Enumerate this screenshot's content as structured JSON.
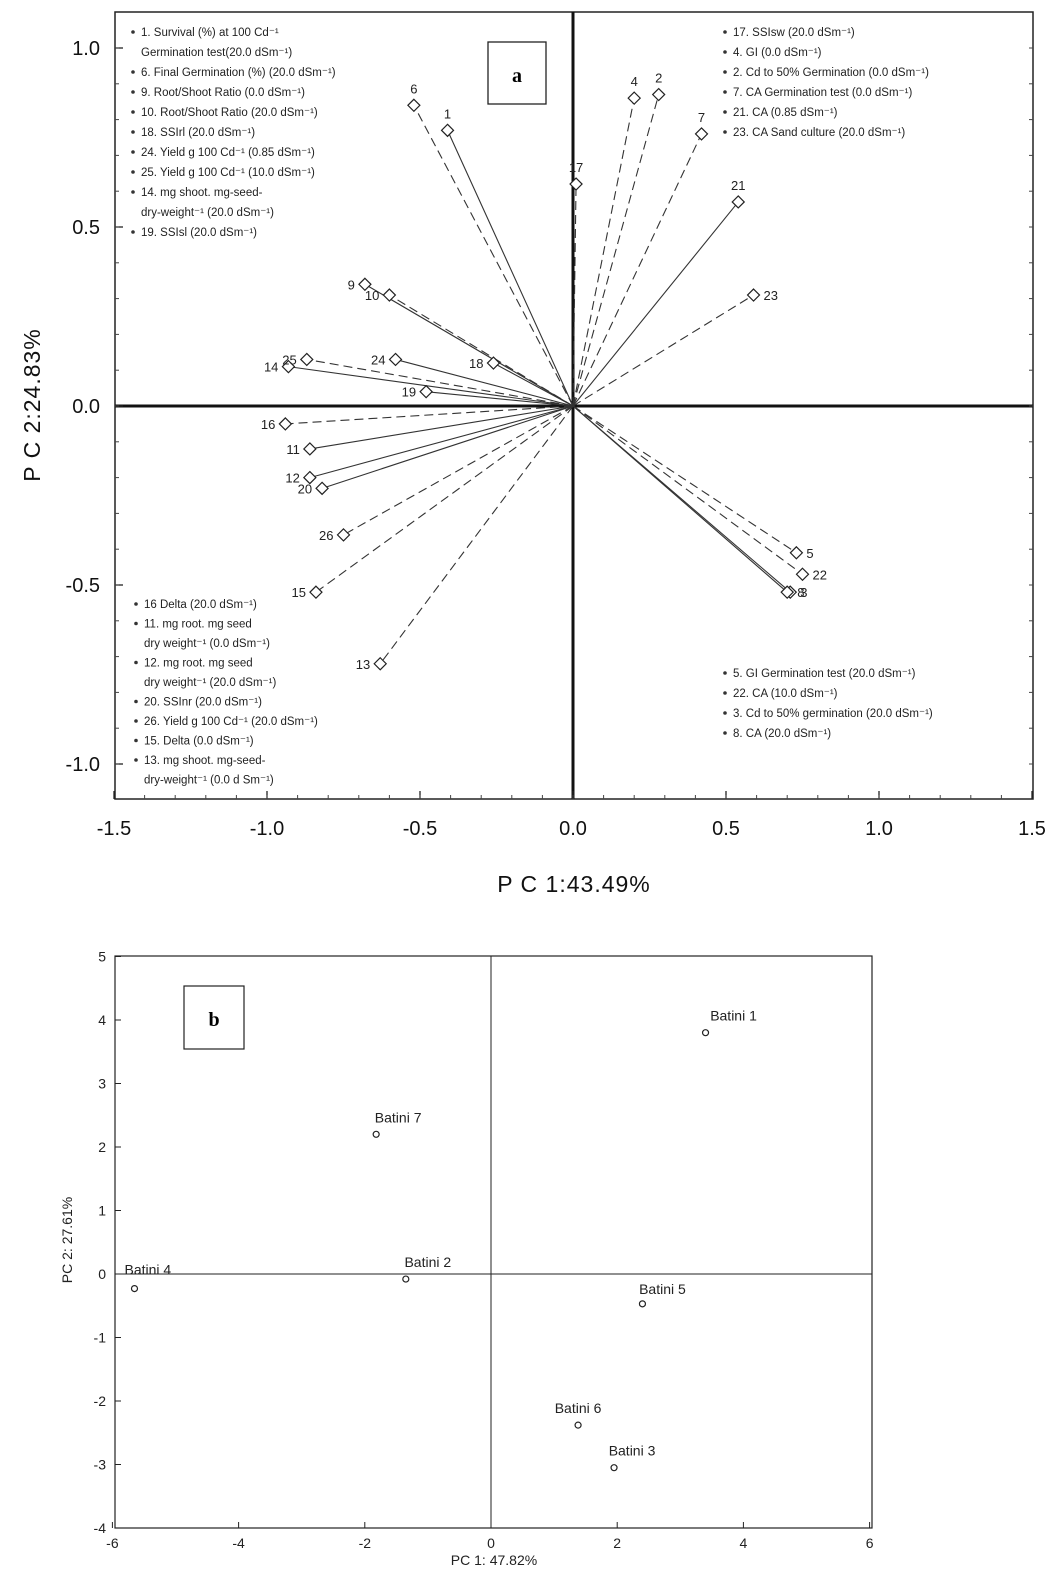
{
  "chart_data": [
    {
      "type": "scatter",
      "panel_label": "a",
      "xlabel": "P C 1:43.49%",
      "ylabel": "P C 2:24.83%",
      "xlim": [
        -1.5,
        1.5
      ],
      "ylim": [
        -1.1,
        1.1
      ],
      "xticks": [
        "-1.5",
        "-1.0",
        "-0.5",
        "0.0",
        "0.5",
        "1.0",
        "1.5"
      ],
      "xtick_values": [
        -1.5,
        -1.0,
        -0.5,
        0.0,
        0.5,
        1.0,
        1.5
      ],
      "yticks": [
        "1.0",
        "0.5",
        "0.0",
        "-0.5",
        "-1.0"
      ],
      "ytick_values": [
        1.0,
        0.5,
        0.0,
        -0.5,
        -1.0
      ],
      "vectors": [
        {
          "label": "1",
          "x": -0.41,
          "y": 0.77,
          "style": "solid"
        },
        {
          "label": "2",
          "x": 0.28,
          "y": 0.87,
          "style": "dashed"
        },
        {
          "label": "3",
          "x": 0.71,
          "y": -0.52,
          "style": "solid"
        },
        {
          "label": "4",
          "x": 0.2,
          "y": 0.86,
          "style": "dashed"
        },
        {
          "label": "5",
          "x": 0.73,
          "y": -0.41,
          "style": "dashed"
        },
        {
          "label": "6",
          "x": -0.52,
          "y": 0.84,
          "style": "dashed"
        },
        {
          "label": "7",
          "x": 0.42,
          "y": 0.76,
          "style": "dashed"
        },
        {
          "label": "8",
          "x": 0.7,
          "y": -0.52,
          "style": "solid"
        },
        {
          "label": "9",
          "x": -0.68,
          "y": 0.34,
          "style": "solid"
        },
        {
          "label": "10",
          "x": -0.6,
          "y": 0.31,
          "style": "dashed"
        },
        {
          "label": "11",
          "x": -0.86,
          "y": -0.12,
          "style": "solid"
        },
        {
          "label": "12",
          "x": -0.86,
          "y": -0.2,
          "style": "solid"
        },
        {
          "label": "13",
          "x": -0.63,
          "y": -0.72,
          "style": "dashed"
        },
        {
          "label": "14",
          "x": -0.93,
          "y": 0.11,
          "style": "solid"
        },
        {
          "label": "15",
          "x": -0.84,
          "y": -0.52,
          "style": "dashed"
        },
        {
          "label": "16",
          "x": -0.94,
          "y": -0.05,
          "style": "dashed"
        },
        {
          "label": "17",
          "x": 0.01,
          "y": 0.62,
          "style": "dashed"
        },
        {
          "label": "18",
          "x": -0.26,
          "y": 0.12,
          "style": "solid"
        },
        {
          "label": "19",
          "x": -0.48,
          "y": 0.04,
          "style": "solid"
        },
        {
          "label": "20",
          "x": -0.82,
          "y": -0.23,
          "style": "solid"
        },
        {
          "label": "21",
          "x": 0.54,
          "y": 0.57,
          "style": "solid"
        },
        {
          "label": "22",
          "x": 0.75,
          "y": -0.47,
          "style": "dashed"
        },
        {
          "label": "23",
          "x": 0.59,
          "y": 0.31,
          "style": "dashed"
        },
        {
          "label": "24",
          "x": -0.58,
          "y": 0.13,
          "style": "solid"
        },
        {
          "label": "25",
          "x": -0.87,
          "y": 0.13,
          "style": "dashed"
        },
        {
          "label": "26",
          "x": -0.75,
          "y": -0.36,
          "style": "dashed"
        }
      ],
      "legend_top_left": [
        "1. Survival (%) at 100 Cd⁻¹",
        "Germination test(20.0 dSm⁻¹)",
        "6. Final Germination (%) (20.0 dSm⁻¹)",
        "9. Root/Shoot Ratio (0.0 dSm⁻¹)",
        "10. Root/Shoot Ratio (20.0 dSm⁻¹)",
        "18. SSIrl (20.0 dSm⁻¹)",
        "24. Yield g 100 Cd⁻¹ (0.85 dSm⁻¹)",
        "25. Yield g 100 Cd⁻¹ (10.0 dSm⁻¹)",
        "14. mg shoot. mg-seed-",
        "dry-weight⁻¹ (20.0 dSm⁻¹)",
        "19. SSIsl (20.0 dSm⁻¹)"
      ],
      "legend_top_right": [
        "17. SSIsw (20.0 dSm⁻¹)",
        "4. GI (0.0 dSm⁻¹)",
        "2. Cd to 50% Germination (0.0 dSm⁻¹)",
        "7. CA Germination test (0.0 dSm⁻¹)",
        "21. CA (0.85 dSm⁻¹)",
        "23. CA Sand culture (20.0 dSm⁻¹)"
      ],
      "legend_bottom_left": [
        "16 Delta (20.0 dSm⁻¹)",
        "11. mg root. mg seed",
        "dry weight⁻¹ (0.0 dSm⁻¹)",
        "12. mg root. mg seed",
        "dry weight⁻¹ (20.0 dSm⁻¹)",
        "20. SSInr (20.0 dSm⁻¹)",
        "26. Yield g 100 Cd⁻¹ (20.0 dSm⁻¹)",
        "15. Delta (0.0 dSm⁻¹)",
        "13. mg shoot. mg-seed-",
        "dry-weight⁻¹ (0.0 d Sm⁻¹)"
      ],
      "legend_bottom_right": [
        "5. GI Germination test (20.0 dSm⁻¹)",
        "22. CA (10.0 dSm⁻¹)",
        "3. Cd to 50% germination (20.0 dSm⁻¹)",
        "8. CA (20.0 dSm⁻¹)"
      ]
    },
    {
      "type": "scatter",
      "panel_label": "b",
      "xlabel": "PC 1: 47.82%",
      "ylabel": "PC 2: 27.61%",
      "xlim": [
        -6,
        6
      ],
      "ylim": [
        -4,
        5
      ],
      "xticks": [
        "-6",
        "-4",
        "-2",
        "0",
        "2",
        "4",
        "6"
      ],
      "xtick_values": [
        -6,
        -4,
        -2,
        0,
        2,
        4,
        6
      ],
      "yticks": [
        "5",
        "4",
        "3",
        "2",
        "1",
        "0",
        "-1",
        "-2",
        "-3",
        "-4"
      ],
      "ytick_values": [
        5,
        4,
        3,
        2,
        1,
        0,
        -1,
        -2,
        -3,
        -4
      ],
      "points": [
        {
          "label": "Batini 1",
          "x": 3.4,
          "y": 3.8
        },
        {
          "label": "Batini 2",
          "x": -1.35,
          "y": -0.08
        },
        {
          "label": "Batini 3",
          "x": 1.95,
          "y": -3.05
        },
        {
          "label": "Batini 4",
          "x": -5.65,
          "y": -0.23
        },
        {
          "label": "Batini 5",
          "x": 2.4,
          "y": -0.47
        },
        {
          "label": "Batini 6",
          "x": 1.38,
          "y": -2.38
        },
        {
          "label": "Batini 7",
          "x": -1.82,
          "y": 2.2
        }
      ]
    }
  ]
}
